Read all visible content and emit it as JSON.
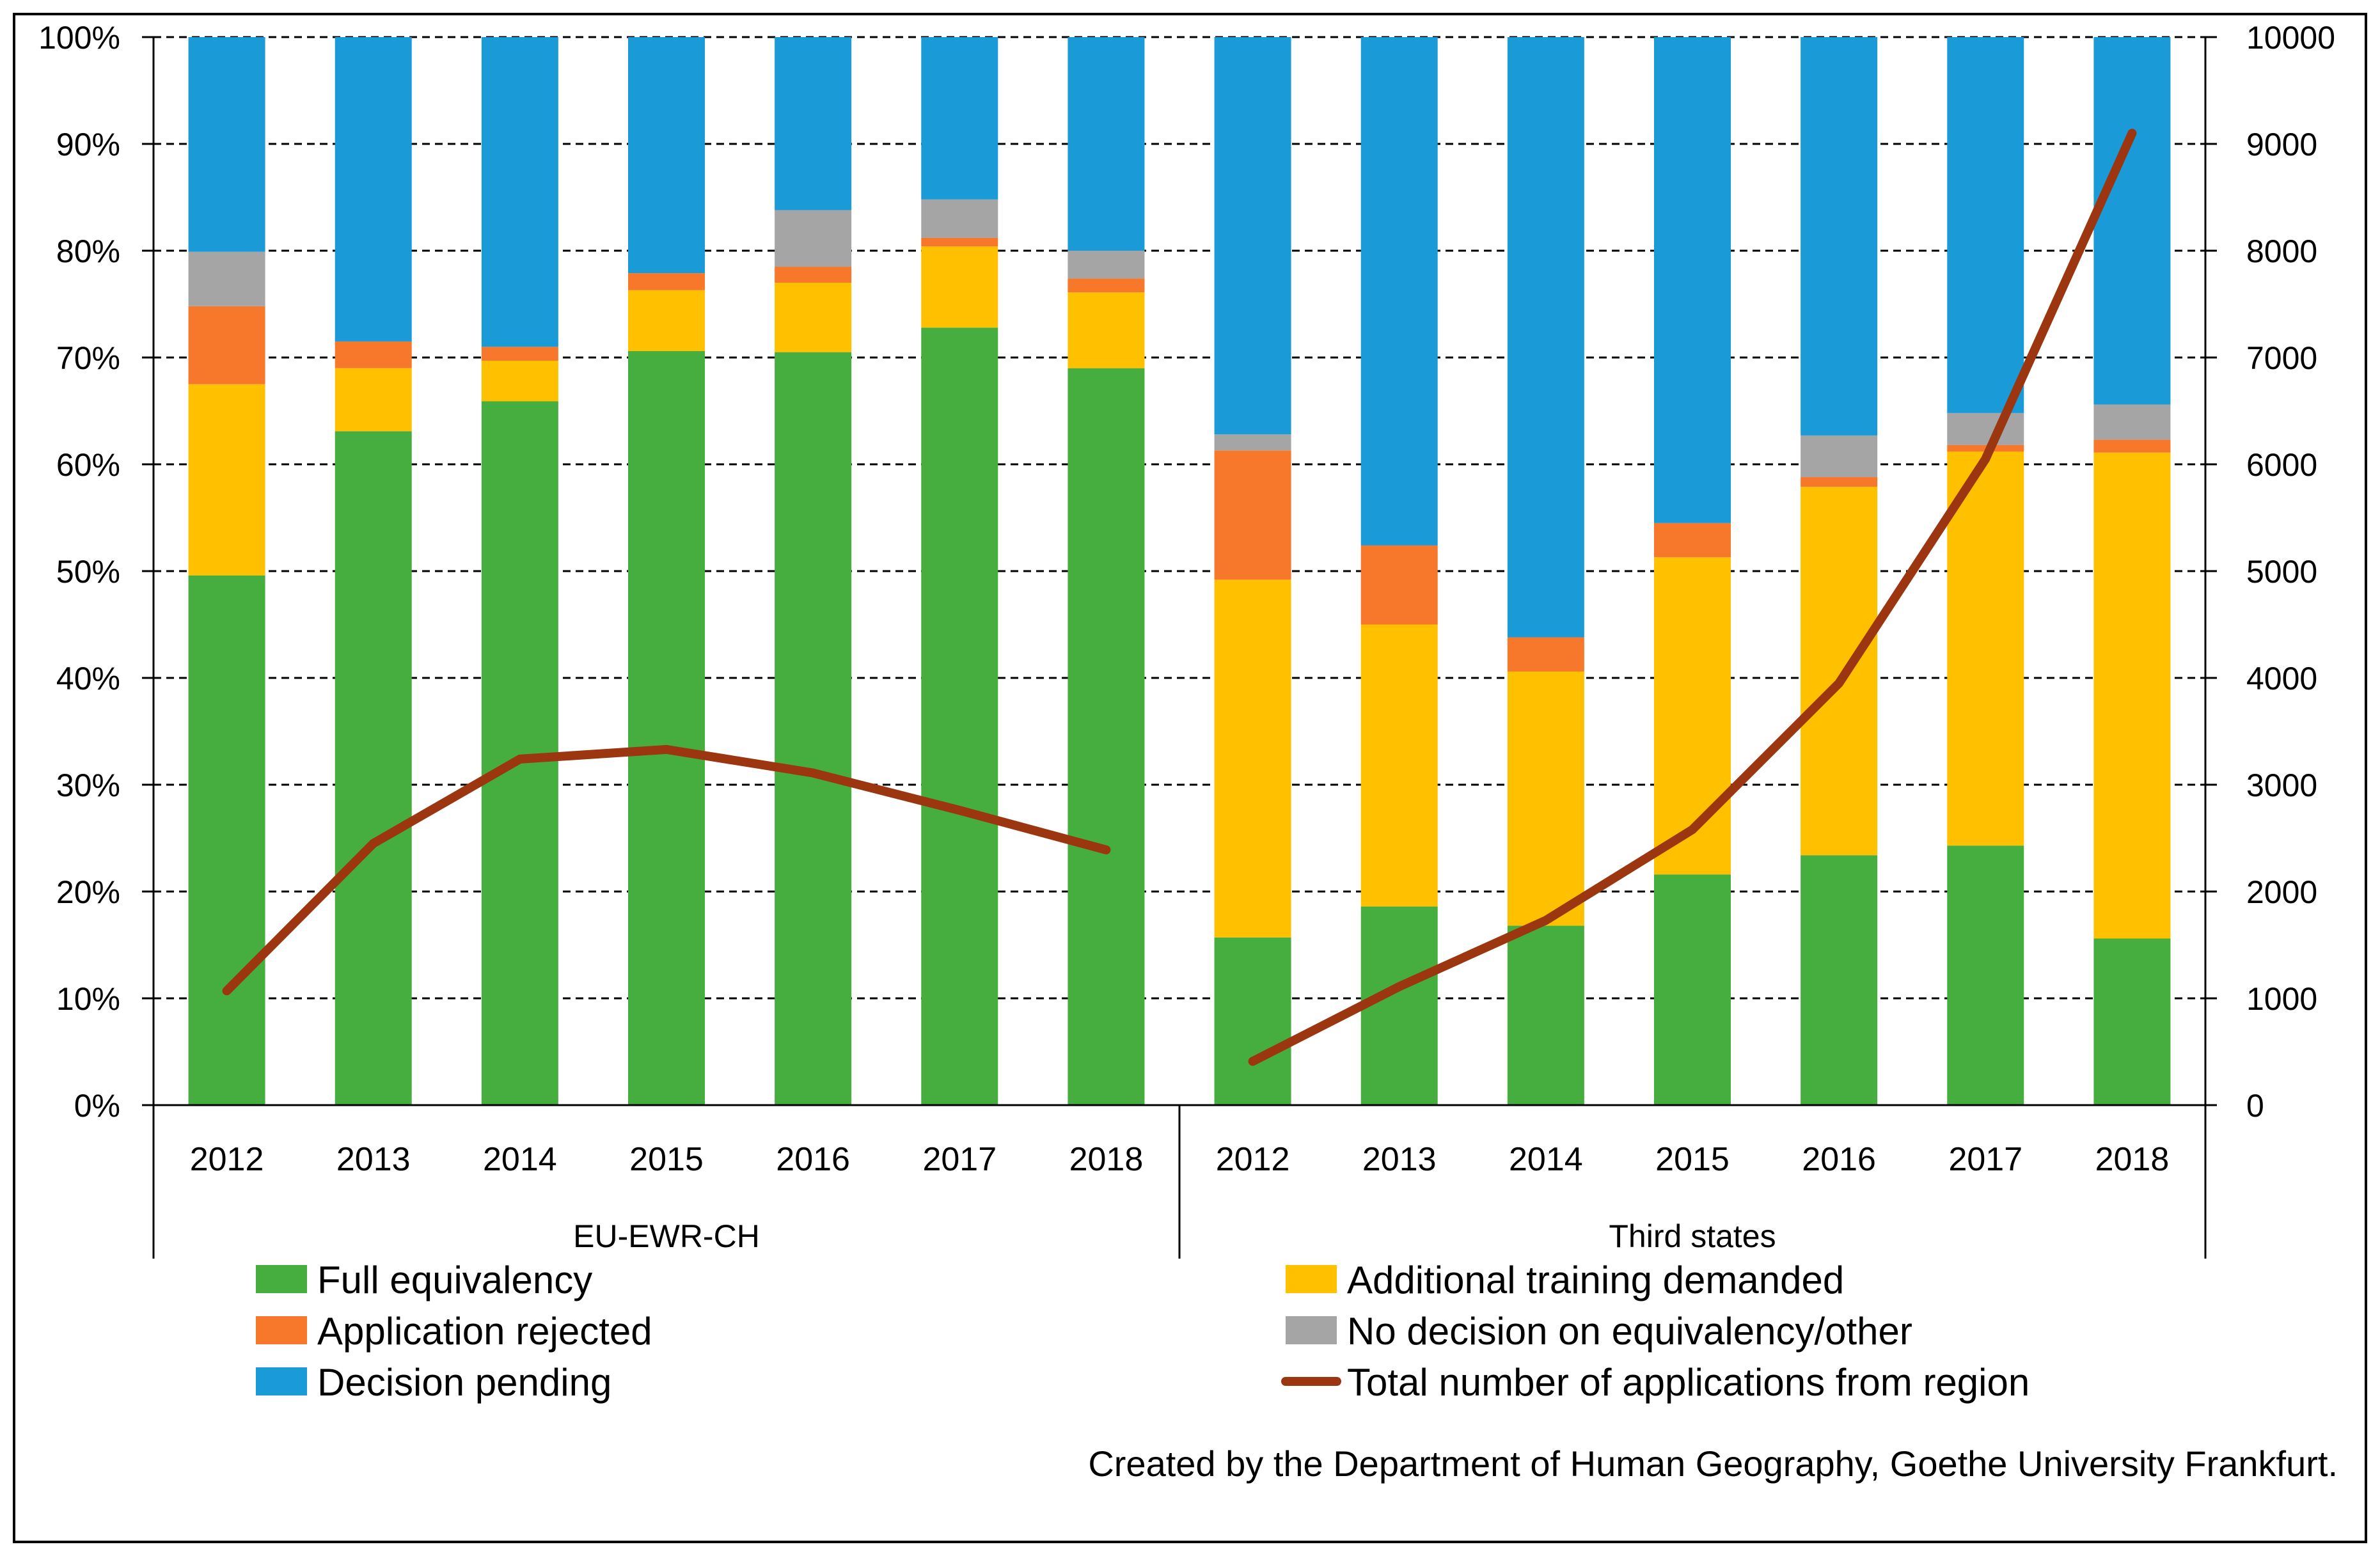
{
  "chart_data": {
    "type": "bar",
    "subtype": "stacked-percent with line on secondary axis",
    "groups": [
      {
        "name": "EU-EWR-CH",
        "categories": [
          "2012",
          "2013",
          "2014",
          "2015",
          "2016",
          "2017",
          "2018"
        ]
      },
      {
        "name": "Third states",
        "categories": [
          "2012",
          "2013",
          "2014",
          "2015",
          "2016",
          "2017",
          "2018"
        ]
      }
    ],
    "series": [
      {
        "name": "Full equivalency",
        "color": "#46AE3E",
        "values": [
          49.6,
          63.1,
          65.9,
          70.6,
          70.5,
          72.8,
          69.0,
          15.7,
          18.6,
          16.8,
          21.6,
          23.4,
          24.3,
          15.6
        ]
      },
      {
        "name": "Additional training demanded",
        "color": "#FFC000",
        "values": [
          17.9,
          5.9,
          3.8,
          5.7,
          6.5,
          7.6,
          7.1,
          33.5,
          26.4,
          23.8,
          29.7,
          34.5,
          36.9,
          45.5
        ]
      },
      {
        "name": "Application rejected",
        "color": "#F7782A",
        "values": [
          7.3,
          2.5,
          1.3,
          1.6,
          1.5,
          0.8,
          1.3,
          12.1,
          7.4,
          3.2,
          3.2,
          0.9,
          0.6,
          1.2
        ]
      },
      {
        "name": "No decision on equivalency/other",
        "color": "#A5A5A5",
        "values": [
          5.1,
          0.0,
          0.0,
          0.0,
          5.3,
          3.6,
          2.6,
          1.5,
          0.0,
          0.0,
          0.0,
          3.9,
          3.0,
          3.3
        ]
      },
      {
        "name": "Decision pending",
        "color": "#1A9BD7",
        "values": [
          20.1,
          28.5,
          29.0,
          22.1,
          16.2,
          15.2,
          20.0,
          37.2,
          47.6,
          56.2,
          45.5,
          37.3,
          35.2,
          34.4
        ]
      }
    ],
    "line": {
      "name": "Total number of applications from region",
      "color": "#9B3610",
      "axis": "right",
      "values": [
        1070,
        2450,
        3240,
        3330,
        3110,
        2760,
        2390,
        410,
        1110,
        1730,
        2580,
        3950,
        6050,
        9100
      ]
    },
    "left_axis": {
      "min": 0,
      "max": 100,
      "ticks": [
        "0%",
        "10%",
        "20%",
        "30%",
        "40%",
        "50%",
        "60%",
        "70%",
        "80%",
        "90%",
        "100%"
      ]
    },
    "right_axis": {
      "min": 0,
      "max": 10000,
      "ticks": [
        "0",
        "1000",
        "2000",
        "3000",
        "4000",
        "5000",
        "6000",
        "7000",
        "8000",
        "9000",
        "10000"
      ]
    },
    "grid": true,
    "legend_position": "bottom"
  },
  "credit": "Created by the Department of Human Geography, Goethe University Frankfurt."
}
